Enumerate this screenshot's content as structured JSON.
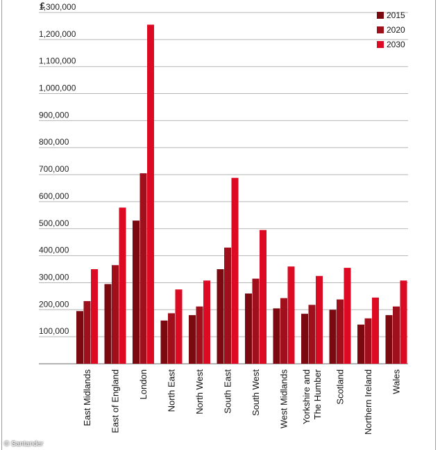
{
  "credit": "© Santander",
  "chart_data": {
    "type": "bar",
    "title": "",
    "currency_label": "£",
    "xlabel": "",
    "ylabel": "£",
    "ylim": [
      0,
      1300000
    ],
    "y_ticks": [
      100000,
      200000,
      300000,
      400000,
      500000,
      600000,
      700000,
      800000,
      900000,
      1000000,
      1100000,
      1200000,
      1300000
    ],
    "y_tick_labels": [
      "100,000",
      "200,000",
      "300,000",
      "400,000",
      "500,000",
      "600,000",
      "700,000",
      "800,000",
      "900,000",
      "1,000,000",
      "1,100,000",
      "1,200,000",
      "1,300,000"
    ],
    "grid": true,
    "legend_position": "top-right",
    "categories": [
      "East Midlands",
      "East of England",
      "London",
      "North East",
      "North West",
      "South East",
      "South West",
      "West Midlands",
      "Yorkshire and The Humber",
      "Scotland",
      "Northern Ireland",
      "Wales"
    ],
    "category_label_lines": [
      [
        "East Midlands"
      ],
      [
        "East of England"
      ],
      [
        "London"
      ],
      [
        "North East"
      ],
      [
        "North West"
      ],
      [
        "South East"
      ],
      [
        "South West"
      ],
      [
        "West Midlands"
      ],
      [
        "Yorkshire and",
        "The Humber"
      ],
      [
        "Scotland"
      ],
      [
        "Northern Ireland"
      ],
      [
        "Wales"
      ]
    ],
    "series": [
      {
        "name": "2015",
        "color": "#7a0a10",
        "values": [
          195000,
          295000,
          530000,
          160000,
          180000,
          350000,
          260000,
          205000,
          185000,
          200000,
          145000,
          180000
        ]
      },
      {
        "name": "2020",
        "color": "#a0101c",
        "values": [
          232000,
          365000,
          705000,
          187000,
          212000,
          430000,
          315000,
          243000,
          218000,
          238000,
          168000,
          212000
        ]
      },
      {
        "name": "2030",
        "color": "#dc0a22",
        "values": [
          350000,
          578000,
          1255000,
          275000,
          308000,
          688000,
          495000,
          360000,
          325000,
          355000,
          245000,
          308000
        ]
      }
    ]
  }
}
